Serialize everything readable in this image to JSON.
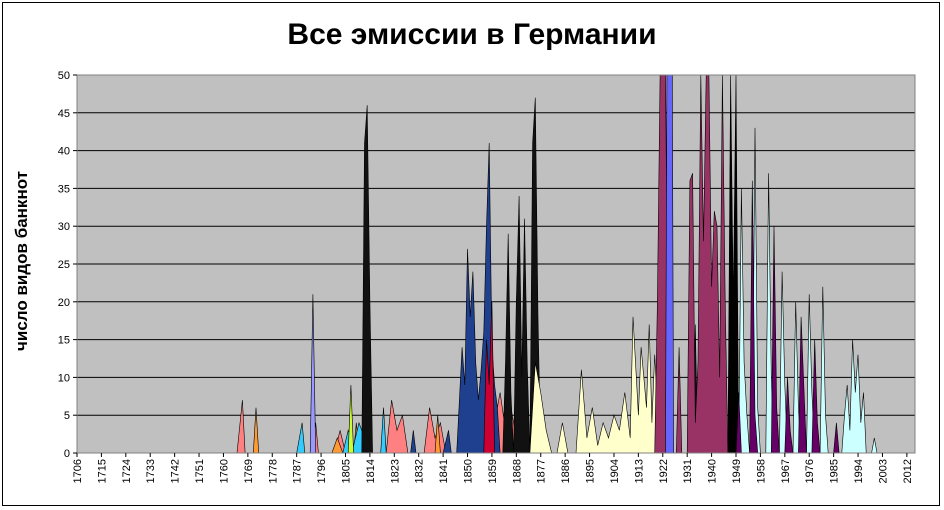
{
  "chart_data": {
    "type": "area",
    "title": "Все эмиссии в Германии",
    "xlabel": "",
    "ylabel": "число видов банкнот",
    "xlim": [
      1706,
      2015
    ],
    "ylim": [
      0,
      50
    ],
    "yticks": [
      0,
      5,
      10,
      15,
      20,
      25,
      30,
      35,
      40,
      45,
      50
    ],
    "xticks": [
      1706,
      1715,
      1724,
      1733,
      1742,
      1751,
      1760,
      1769,
      1778,
      1787,
      1796,
      1805,
      1814,
      1823,
      1832,
      1841,
      1850,
      1859,
      1868,
      1877,
      1886,
      1895,
      1904,
      1913,
      1922,
      1931,
      1940,
      1949,
      1958,
      1967,
      1976,
      1985,
      1994,
      2003,
      2012
    ],
    "grid": true,
    "legend": "none",
    "background": "#c0c0c0",
    "series": [
      {
        "color": "#ff8080",
        "points": [
          [
            1765,
            0
          ],
          [
            1767,
            7
          ],
          [
            1768,
            0
          ],
          [
            1793,
            0
          ],
          [
            1794,
            4
          ],
          [
            1795,
            0
          ],
          [
            1801,
            0
          ],
          [
            1803,
            3
          ],
          [
            1805,
            0
          ],
          [
            1820,
            0
          ],
          [
            1822,
            7
          ],
          [
            1824,
            3
          ],
          [
            1826,
            5
          ],
          [
            1828,
            0
          ],
          [
            1834,
            0
          ],
          [
            1836,
            6
          ],
          [
            1838,
            2
          ],
          [
            1840,
            4
          ],
          [
            1842,
            0
          ],
          [
            1846,
            0
          ],
          [
            1848,
            8
          ],
          [
            1850,
            6
          ],
          [
            1852,
            10
          ],
          [
            1854,
            4
          ],
          [
            1856,
            12
          ],
          [
            1858,
            6
          ],
          [
            1860,
            4
          ],
          [
            1862,
            8
          ],
          [
            1864,
            3
          ],
          [
            1866,
            6
          ],
          [
            1868,
            2
          ],
          [
            1870,
            4
          ],
          [
            1872,
            0
          ]
        ]
      },
      {
        "color": "#ff9933",
        "points": [
          [
            1771,
            0
          ],
          [
            1772,
            6
          ],
          [
            1773,
            0
          ],
          [
            1800,
            0
          ],
          [
            1802,
            2
          ],
          [
            1804,
            0
          ],
          [
            1808,
            0
          ],
          [
            1809,
            4
          ],
          [
            1810,
            0
          ],
          [
            1838,
            0
          ],
          [
            1839,
            5
          ],
          [
            1840,
            0
          ]
        ]
      },
      {
        "color": "#33ccff",
        "points": [
          [
            1787,
            0
          ],
          [
            1789,
            4
          ],
          [
            1790,
            0
          ],
          [
            1804,
            0
          ],
          [
            1806,
            3
          ],
          [
            1808,
            1
          ],
          [
            1810,
            4
          ],
          [
            1812,
            2
          ],
          [
            1814,
            0
          ],
          [
            1818,
            0
          ],
          [
            1819,
            6
          ],
          [
            1820,
            0
          ]
        ]
      },
      {
        "color": "#9999ff",
        "points": [
          [
            1792,
            0
          ],
          [
            1793,
            21
          ],
          [
            1794,
            0
          ]
        ]
      },
      {
        "color": "#ccff33",
        "points": [
          [
            1806,
            0
          ],
          [
            1807,
            9
          ],
          [
            1808,
            0
          ]
        ]
      },
      {
        "color": "#1f3f8f",
        "points": [
          [
            1812,
            0
          ],
          [
            1813,
            4
          ],
          [
            1814,
            0
          ],
          [
            1829,
            0
          ],
          [
            1830,
            3
          ],
          [
            1831,
            0
          ],
          [
            1841,
            0
          ],
          [
            1843,
            3
          ],
          [
            1844,
            0
          ],
          [
            1846,
            0
          ],
          [
            1848,
            14
          ],
          [
            1849,
            9
          ],
          [
            1850,
            27
          ],
          [
            1851,
            18
          ],
          [
            1852,
            24
          ],
          [
            1853,
            12
          ],
          [
            1854,
            7
          ],
          [
            1855,
            11
          ],
          [
            1856,
            16
          ],
          [
            1857,
            30
          ],
          [
            1858,
            41
          ],
          [
            1859,
            14
          ],
          [
            1860,
            9
          ],
          [
            1861,
            6
          ],
          [
            1862,
            0
          ]
        ]
      },
      {
        "color": "#111111",
        "points": [
          [
            1811,
            0
          ],
          [
            1812,
            41
          ],
          [
            1813,
            46
          ],
          [
            1814,
            20
          ],
          [
            1815,
            0
          ],
          [
            1863,
            0
          ],
          [
            1864,
            12
          ],
          [
            1865,
            29
          ],
          [
            1866,
            8
          ],
          [
            1867,
            0
          ],
          [
            1867,
            0
          ],
          [
            1868,
            20
          ],
          [
            1869,
            34
          ],
          [
            1870,
            10
          ],
          [
            1871,
            31
          ],
          [
            1872,
            12
          ],
          [
            1873,
            0
          ],
          [
            1873,
            0
          ],
          [
            1874,
            41
          ],
          [
            1875,
            47
          ],
          [
            1876,
            18
          ],
          [
            1877,
            0
          ],
          [
            1933,
            0
          ],
          [
            1934,
            17
          ],
          [
            1935,
            0
          ]
        ]
      },
      {
        "color": "#cc0033",
        "points": [
          [
            1856,
            0
          ],
          [
            1857,
            15
          ],
          [
            1858,
            9
          ],
          [
            1859,
            20
          ],
          [
            1860,
            0
          ]
        ]
      },
      {
        "color": "#ffffcc",
        "points": [
          [
            1873,
            0
          ],
          [
            1875,
            12
          ],
          [
            1877,
            8
          ],
          [
            1879,
            3
          ],
          [
            1881,
            0
          ],
          [
            1883,
            0
          ],
          [
            1885,
            4
          ],
          [
            1887,
            0
          ],
          [
            1890,
            0
          ],
          [
            1892,
            11
          ],
          [
            1894,
            2
          ],
          [
            1896,
            6
          ],
          [
            1898,
            1
          ],
          [
            1900,
            4
          ],
          [
            1902,
            2
          ],
          [
            1904,
            5
          ],
          [
            1906,
            3
          ],
          [
            1908,
            8
          ],
          [
            1910,
            2
          ],
          [
            1911,
            18
          ],
          [
            1913,
            5
          ],
          [
            1914,
            14
          ],
          [
            1916,
            6
          ],
          [
            1917,
            17
          ],
          [
            1918,
            4
          ],
          [
            1919,
            13
          ],
          [
            1920,
            6
          ],
          [
            1921,
            0
          ]
        ]
      },
      {
        "color": "#993366",
        "points": [
          [
            1919,
            0
          ],
          [
            1920,
            20
          ],
          [
            1921,
            50
          ],
          [
            1922,
            50
          ],
          [
            1923,
            50
          ],
          [
            1924,
            10
          ],
          [
            1925,
            0
          ],
          [
            1927,
            0
          ],
          [
            1928,
            14
          ],
          [
            1929,
            0
          ],
          [
            1931,
            0
          ],
          [
            1932,
            36
          ],
          [
            1933,
            37
          ],
          [
            1934,
            4
          ],
          [
            1935,
            12
          ],
          [
            1936,
            50
          ],
          [
            1937,
            28
          ],
          [
            1938,
            50
          ],
          [
            1939,
            50
          ],
          [
            1940,
            22
          ],
          [
            1941,
            32
          ],
          [
            1942,
            30
          ],
          [
            1943,
            10
          ],
          [
            1944,
            50
          ],
          [
            1945,
            20
          ],
          [
            1946,
            0
          ]
        ]
      },
      {
        "color": "#6666ff",
        "points": [
          [
            1923,
            0
          ],
          [
            1923.5,
            50
          ],
          [
            1925.5,
            50
          ],
          [
            1926,
            0
          ]
        ]
      },
      {
        "color": "#000000",
        "points": [
          [
            1946,
            0
          ],
          [
            1947,
            50
          ],
          [
            1948,
            20
          ],
          [
            1949,
            50
          ],
          [
            1950,
            0
          ]
        ]
      },
      {
        "color": "#ccffff",
        "points": [
          [
            1950,
            0
          ],
          [
            1951,
            35
          ],
          [
            1952,
            12
          ],
          [
            1953,
            5
          ],
          [
            1954,
            0
          ],
          [
            1955,
            0
          ],
          [
            1956,
            43
          ],
          [
            1957,
            6
          ],
          [
            1958,
            0
          ],
          [
            1960,
            0
          ],
          [
            1961,
            37
          ],
          [
            1962,
            10
          ],
          [
            1963,
            0
          ],
          [
            1965,
            0
          ],
          [
            1966,
            24
          ],
          [
            1967,
            9
          ],
          [
            1968,
            0
          ],
          [
            1970,
            0
          ],
          [
            1971,
            20
          ],
          [
            1972,
            6
          ],
          [
            1973,
            0
          ],
          [
            1975,
            0
          ],
          [
            1976,
            21
          ],
          [
            1977,
            8
          ],
          [
            1978,
            0
          ],
          [
            1980,
            0
          ],
          [
            1981,
            22
          ],
          [
            1982,
            5
          ],
          [
            1983,
            0
          ],
          [
            1988,
            0
          ],
          [
            1989,
            5
          ],
          [
            1990,
            9
          ],
          [
            1991,
            3
          ],
          [
            1992,
            15
          ],
          [
            1993,
            8
          ],
          [
            1994,
            13
          ],
          [
            1995,
            4
          ],
          [
            1996,
            8
          ],
          [
            1997,
            0
          ],
          [
            1999,
            0
          ],
          [
            2000,
            2
          ],
          [
            2001,
            0
          ]
        ]
      },
      {
        "color": "#660066",
        "points": [
          [
            1949,
            0
          ],
          [
            1950,
            8
          ],
          [
            1951,
            0
          ],
          [
            1954,
            0
          ],
          [
            1955,
            36
          ],
          [
            1956,
            5
          ],
          [
            1957,
            0
          ],
          [
            1962,
            0
          ],
          [
            1963,
            30
          ],
          [
            1964,
            6
          ],
          [
            1965,
            0
          ],
          [
            1967,
            0
          ],
          [
            1968,
            10
          ],
          [
            1969,
            3
          ],
          [
            1970,
            0
          ],
          [
            1972,
            0
          ],
          [
            1973,
            18
          ],
          [
            1974,
            9
          ],
          [
            1975,
            0
          ],
          [
            1977,
            0
          ],
          [
            1978,
            15
          ],
          [
            1979,
            4
          ],
          [
            1980,
            0
          ],
          [
            1985,
            0
          ],
          [
            1986,
            4
          ],
          [
            1987,
            0
          ]
        ]
      }
    ]
  }
}
